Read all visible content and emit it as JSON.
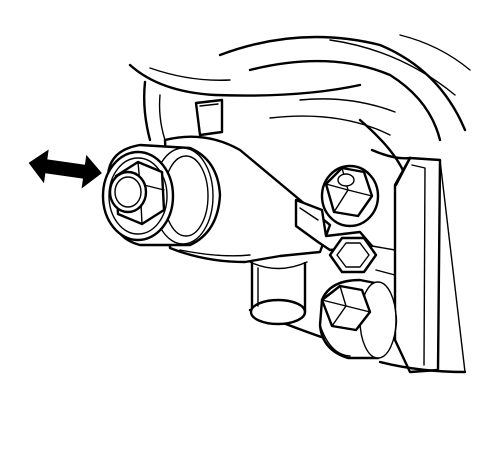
{
  "figure": {
    "background": "#ffffff",
    "line_color": "#000000",
    "icons": [
      "double-headed-arrow-icon",
      "hex-bolt-icon"
    ],
    "parts": [
      "housing",
      "main-hex-bolt",
      "upper-right-hex-bolt",
      "lower-right-hex-bolt",
      "hex-nut",
      "pipe-outlet",
      "bracket"
    ]
  }
}
